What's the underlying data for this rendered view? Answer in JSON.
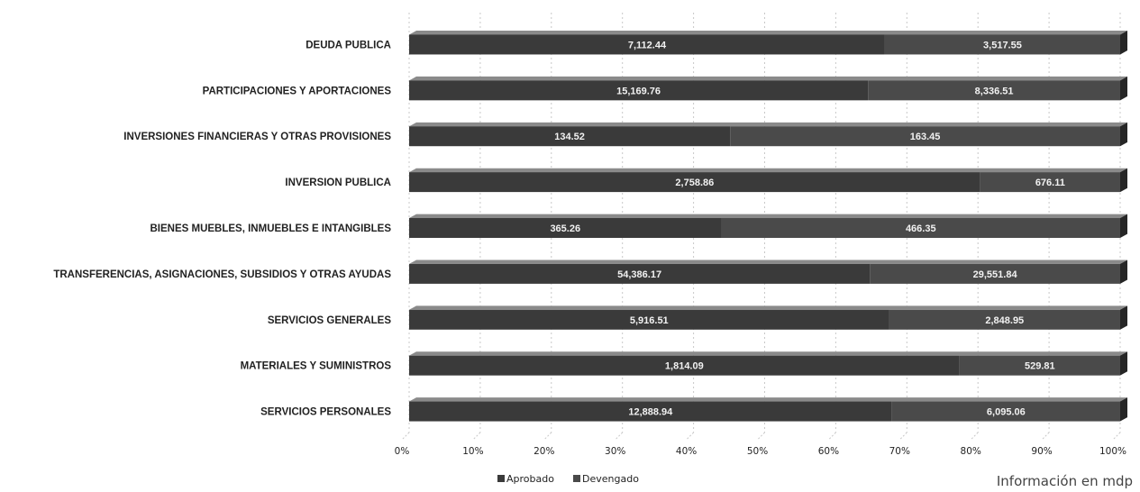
{
  "chart_data": {
    "type": "bar",
    "orientation": "horizontal",
    "stacked": "percent",
    "categories": [
      "DEUDA PUBLICA",
      "PARTICIPACIONES Y APORTACIONES",
      "INVERSIONES FINANCIERAS Y OTRAS PROVISIONES",
      "INVERSION PUBLICA",
      "BIENES MUEBLES, INMUEBLES E INTANGIBLES",
      "TRANSFERENCIAS, ASIGNACIONES, SUBSIDIOS Y OTRAS AYUDAS",
      "SERVICIOS GENERALES",
      "MATERIALES Y SUMINISTROS",
      "SERVICIOS PERSONALES"
    ],
    "series": [
      {
        "name": "Aprobado",
        "values": [
          7112.44,
          15169.76,
          134.52,
          2758.86,
          365.26,
          54386.17,
          5916.51,
          1814.09,
          12888.94
        ],
        "labels": [
          "7,112.44",
          "15,169.76",
          "134.52",
          "2,758.86",
          "365.26",
          "54,386.17",
          "5,916.51",
          "1,814.09",
          "12,888.94"
        ]
      },
      {
        "name": "Devengado",
        "values": [
          3517.55,
          8336.51,
          163.45,
          676.11,
          466.35,
          29551.84,
          2848.95,
          529.81,
          6095.06
        ],
        "labels": [
          "3,517.55",
          "8,336.51",
          "163.45",
          "676.11",
          "466.35",
          "29,551.84",
          "2,848.95",
          "529.81",
          "6,095.06"
        ]
      }
    ],
    "xticks": [
      "0%",
      "10%",
      "20%",
      "30%",
      "40%",
      "50%",
      "60%",
      "70%",
      "80%",
      "90%",
      "100%"
    ],
    "xlim": [
      0,
      100
    ],
    "grid": true,
    "legend_position": "bottom",
    "note": "Información en mdp",
    "colors": {
      "aprobado": "#3a3a3a",
      "devengado": "#4a4a4a",
      "top": "#8a8a8a",
      "side": "#262626",
      "grid": "#c8c8c8"
    }
  }
}
